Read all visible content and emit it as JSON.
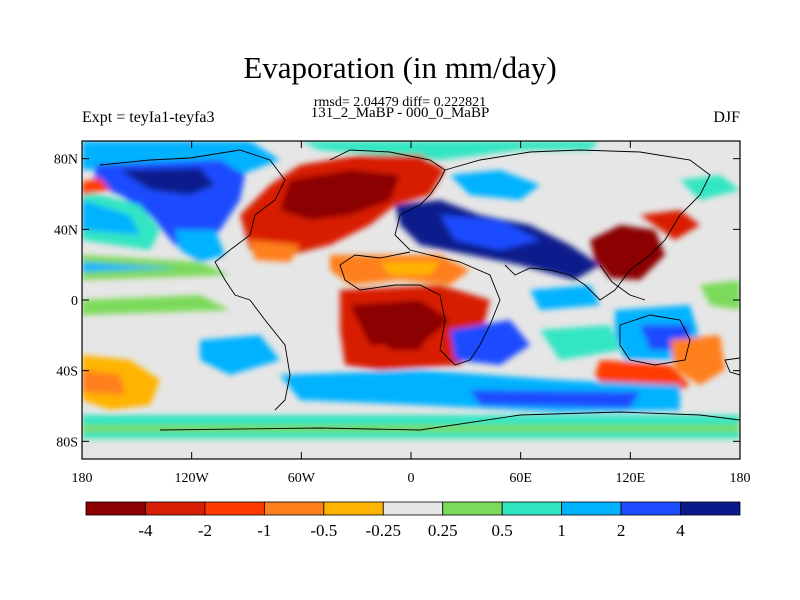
{
  "title": "Evaporation (in mm/day)",
  "stats_line": "rmsd= 2.04479 diff= 0.222821",
  "experiment_label": "Expt = teyIa1-teyfa3",
  "comparison_label": "131_2_MaBP - 000_0_MaBP",
  "season_label": "DJF",
  "map": {
    "projection": "cylindrical equidistant",
    "lon_range": [
      -180,
      180
    ],
    "lat_range": [
      -90,
      90
    ],
    "x_tick_labels": [
      "180",
      "120W",
      "60W",
      "0",
      "60E",
      "120E",
      "180"
    ],
    "y_tick_labels": [
      "80N",
      "40N",
      "0",
      "40S",
      "80S"
    ]
  },
  "colorbar": {
    "levels": [
      "-4",
      "-2",
      "-1",
      "-0.5",
      "-0.25",
      "0.25",
      "0.5",
      "1",
      "2",
      "4"
    ],
    "colors": [
      "#8b0000",
      "#d81e05",
      "#ff3a00",
      "#ff7f1a",
      "#ffb400",
      "#e6e6e6",
      "#7cda5a",
      "#30e6c2",
      "#00b2ff",
      "#1e4cff",
      "#0a1a8c"
    ]
  }
}
